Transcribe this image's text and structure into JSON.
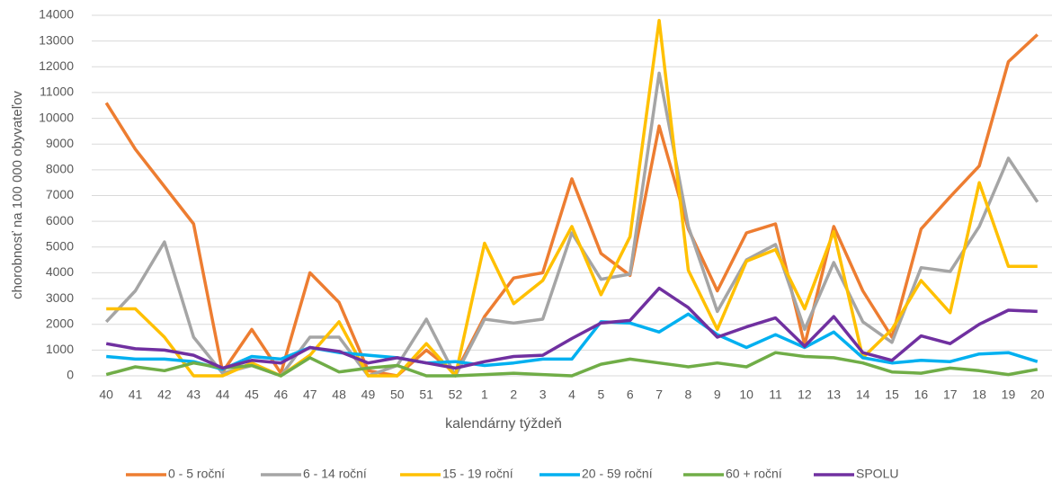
{
  "chart_data": {
    "type": "line",
    "xlabel": "kalendárny týždeň",
    "ylabel": "chorobnosť na 100 000 obyvateľov",
    "categories": [
      "40",
      "41",
      "42",
      "43",
      "44",
      "45",
      "46",
      "47",
      "48",
      "49",
      "50",
      "51",
      "52",
      "1",
      "2",
      "3",
      "4",
      "5",
      "6",
      "7",
      "8",
      "9",
      "10",
      "11",
      "12",
      "13",
      "14",
      "15",
      "16",
      "17",
      "18",
      "19",
      "20"
    ],
    "ylim": [
      0,
      14000
    ],
    "yticks": [
      0,
      1000,
      2000,
      3000,
      4000,
      5000,
      6000,
      7000,
      8000,
      9000,
      10000,
      11000,
      12000,
      13000,
      14000
    ],
    "grid": true,
    "legend": "bottom",
    "series": [
      {
        "name": "0 - 5 roční",
        "color": "#ed7d31",
        "values": [
          10600,
          8800,
          7350,
          5900,
          150,
          1800,
          100,
          4000,
          2850,
          200,
          0,
          1000,
          100,
          2300,
          3800,
          4000,
          7650,
          4750,
          3900,
          9700,
          5700,
          3300,
          5550,
          5900,
          1200,
          5800,
          3300,
          1500,
          5700,
          6950,
          8150,
          12200,
          13250
        ]
      },
      {
        "name": "6 - 14 roční",
        "color": "#a5a5a5",
        "values": [
          2100,
          3300,
          5200,
          1500,
          100,
          400,
          0,
          1500,
          1500,
          0,
          400,
          2200,
          0,
          2200,
          2050,
          2200,
          5550,
          3750,
          3950,
          11750,
          5800,
          2500,
          4500,
          5100,
          1800,
          4400,
          2100,
          1300,
          4200,
          4050,
          5800,
          8450,
          6750
        ]
      },
      {
        "name": "15 - 19 roční",
        "color": "#ffc000",
        "values": [
          2600,
          2600,
          1500,
          0,
          0,
          500,
          0,
          800,
          2100,
          0,
          0,
          1250,
          0,
          5150,
          2800,
          3700,
          5800,
          3150,
          5400,
          13800,
          4100,
          1800,
          4450,
          4900,
          2600,
          5600,
          700,
          1800,
          3700,
          2450,
          7500,
          4250,
          4250
        ]
      },
      {
        "name": "20 - 59 roční",
        "color": "#00b0f0",
        "values": [
          750,
          650,
          650,
          550,
          250,
          750,
          650,
          1100,
          900,
          800,
          700,
          500,
          550,
          400,
          500,
          650,
          650,
          2100,
          2050,
          1700,
          2400,
          1600,
          1100,
          1600,
          1100,
          1700,
          700,
          500,
          600,
          550,
          850,
          900,
          550
        ]
      },
      {
        "name": "60 + roční",
        "color": "#70ad47",
        "values": [
          50,
          350,
          200,
          500,
          300,
          400,
          0,
          700,
          150,
          300,
          400,
          0,
          0,
          50,
          100,
          50,
          0,
          450,
          650,
          500,
          350,
          500,
          350,
          900,
          750,
          700,
          500,
          150,
          100,
          300,
          200,
          50,
          250
        ]
      },
      {
        "name": "SPOLU",
        "color": "#7030a0",
        "values": [
          1250,
          1050,
          1000,
          800,
          300,
          600,
          500,
          1100,
          950,
          500,
          700,
          500,
          300,
          550,
          750,
          800,
          1450,
          2050,
          2150,
          3400,
          2650,
          1500,
          1900,
          2250,
          1150,
          2300,
          900,
          600,
          1550,
          1250,
          2000,
          2550,
          2500
        ]
      }
    ]
  }
}
